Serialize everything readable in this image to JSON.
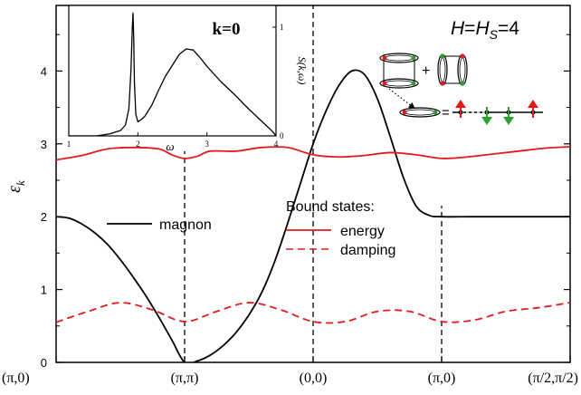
{
  "chart_data": [
    {
      "type": "line",
      "title": "",
      "annotation": "H=H_S=4",
      "xlabel": "",
      "ylabel": "ε_k",
      "ylim": [
        0,
        4.9
      ],
      "yticks": [
        0,
        1,
        2,
        3,
        4
      ],
      "x_tick_labels": [
        "(π,0)",
        "(π,π)",
        "(0,0)",
        "(π,0)",
        "(π/2,π/2)"
      ],
      "x_tick_positions": [
        0,
        1,
        2,
        3,
        4
      ],
      "xlim": [
        0,
        4
      ],
      "grid": false,
      "legend_title": "Bound states:",
      "series": [
        {
          "name": "magnon",
          "color": "#000000",
          "dash": "solid",
          "x": [
            0,
            0.1,
            0.2,
            0.3,
            0.4,
            0.5,
            0.6,
            0.7,
            0.8,
            0.9,
            1.0,
            1.1,
            1.2,
            1.3,
            1.4,
            1.5,
            1.6,
            1.7,
            1.8,
            1.9,
            2.0,
            2.1,
            2.2,
            2.3,
            2.4,
            2.5,
            2.6,
            2.7,
            2.8,
            2.9,
            3.0,
            3.25,
            3.5,
            3.75,
            4.0
          ],
          "y": [
            2.0,
            1.98,
            1.9,
            1.78,
            1.62,
            1.41,
            1.17,
            0.91,
            0.62,
            0.31,
            0.0,
            0.02,
            0.1,
            0.23,
            0.41,
            0.65,
            0.96,
            1.38,
            1.9,
            2.45,
            3.0,
            3.45,
            3.8,
            4.0,
            3.95,
            3.62,
            3.1,
            2.55,
            2.15,
            2.02,
            2.0,
            2.0,
            2.0,
            2.0,
            2.0
          ]
        },
        {
          "name": "energy",
          "color": "#e31a1c",
          "dash": "solid",
          "x": [
            0,
            0.2,
            0.4,
            0.6,
            0.8,
            0.9,
            1.0,
            1.1,
            1.2,
            1.4,
            1.6,
            1.8,
            2.0,
            2.2,
            2.4,
            2.6,
            2.8,
            3.0,
            3.2,
            3.4,
            3.6,
            3.8,
            4.0
          ],
          "y": [
            2.78,
            2.84,
            2.93,
            2.95,
            2.93,
            2.85,
            2.8,
            2.83,
            2.9,
            2.9,
            2.95,
            2.95,
            2.85,
            2.82,
            2.84,
            2.88,
            2.85,
            2.8,
            2.82,
            2.86,
            2.9,
            2.94,
            2.96
          ]
        },
        {
          "name": "damping",
          "color": "#e31a1c",
          "dash": "dashed",
          "x": [
            0,
            0.25,
            0.5,
            0.75,
            1.0,
            1.25,
            1.5,
            1.75,
            2.0,
            2.25,
            2.5,
            2.75,
            3.0,
            3.25,
            3.5,
            3.75,
            4.0
          ],
          "y": [
            0.55,
            0.7,
            0.82,
            0.72,
            0.56,
            0.7,
            0.82,
            0.72,
            0.56,
            0.56,
            0.7,
            0.7,
            0.56,
            0.58,
            0.7,
            0.75,
            0.82
          ]
        }
      ]
    },
    {
      "type": "line",
      "title": "k=0",
      "xlabel": "ω",
      "ylabel": "S(k,ω)",
      "xlim": [
        1,
        4
      ],
      "ylim": [
        0,
        1.2
      ],
      "x_tick_labels": [
        "1",
        "2",
        "3",
        "4"
      ],
      "y_tick_labels": [
        "0",
        "1"
      ],
      "series": [
        {
          "name": "",
          "color": "#000000",
          "dash": "solid",
          "x": [
            1.0,
            1.2,
            1.4,
            1.6,
            1.75,
            1.82,
            1.87,
            1.9,
            1.92,
            1.93,
            1.94,
            1.95,
            1.97,
            2.0,
            2.05,
            2.1,
            2.2,
            2.3,
            2.4,
            2.5,
            2.6,
            2.7,
            2.8,
            2.9,
            3.0,
            3.2,
            3.4,
            3.6,
            3.8,
            3.95,
            4.0
          ],
          "y": [
            0.0,
            0.0,
            0.0,
            0.02,
            0.05,
            0.1,
            0.25,
            0.6,
            1.0,
            1.13,
            0.9,
            0.5,
            0.2,
            0.13,
            0.15,
            0.18,
            0.28,
            0.42,
            0.55,
            0.65,
            0.75,
            0.8,
            0.79,
            0.72,
            0.64,
            0.5,
            0.38,
            0.25,
            0.13,
            0.04,
            0.0
          ]
        }
      ]
    }
  ],
  "diagram": {
    "plus": "+",
    "equals": "="
  }
}
